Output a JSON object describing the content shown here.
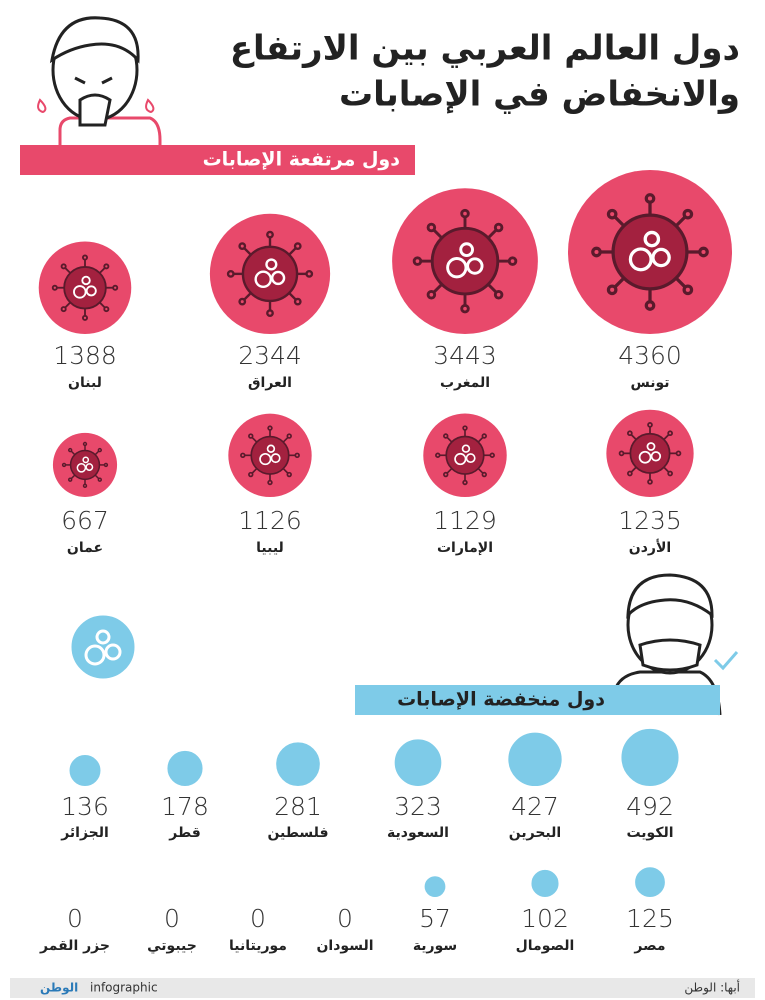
{
  "title_lines": [
    "دول العالم العربي بين الارتفاع",
    "والانخفاض في الإصابات"
  ],
  "high": {
    "label": "دول مرتفعة الإصابات",
    "color": "#e8496b",
    "countries": [
      {
        "name": "تونس",
        "cases": 4360
      },
      {
        "name": "المغرب",
        "cases": 3443
      },
      {
        "name": "العراق",
        "cases": 2344
      },
      {
        "name": "لبنان",
        "cases": 1388
      },
      {
        "name": "الأردن",
        "cases": 1235
      },
      {
        "name": "الإمارات",
        "cases": 1129
      },
      {
        "name": "ليبيا",
        "cases": 1126
      },
      {
        "name": "عمان",
        "cases": 667
      }
    ]
  },
  "low": {
    "label": "دول منخفضة الإصابات",
    "color": "#7ecbe8",
    "countries": [
      {
        "name": "الكويت",
        "cases": 492
      },
      {
        "name": "البحرين",
        "cases": 427
      },
      {
        "name": "السعودية",
        "cases": 323
      },
      {
        "name": "فلسطين",
        "cases": 281
      },
      {
        "name": "قطر",
        "cases": 178
      },
      {
        "name": "الجزائر",
        "cases": 136
      },
      {
        "name": "مصر",
        "cases": 125
      },
      {
        "name": "الصومال",
        "cases": 102
      },
      {
        "name": "سورية",
        "cases": 57
      },
      {
        "name": "السودان",
        "cases": 0
      },
      {
        "name": "موريتانيا",
        "cases": 0
      },
      {
        "name": "جيبوتي",
        "cases": 0
      },
      {
        "name": "جزر القمر",
        "cases": 0
      }
    ]
  },
  "footer": {
    "brand": "الوطن",
    "tag": "infographic",
    "source": "أبها: الوطن"
  }
}
